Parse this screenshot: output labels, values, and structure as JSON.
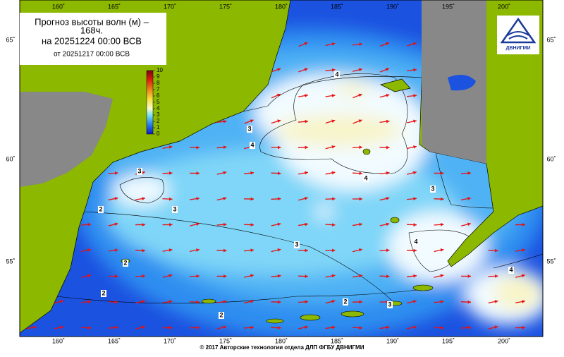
{
  "header": {
    "title": "Прогноз высоты волн (м) –",
    "title_hours": "168ч.",
    "valid": "на 20251224 00:00 ВСВ",
    "issued": "от 20251217 00:00 ВСВ"
  },
  "legend": {
    "ticks": [
      0,
      1,
      2,
      3,
      4,
      5,
      6,
      7,
      8,
      9,
      10
    ]
  },
  "longitudes": [
    "160˚",
    "165˚",
    "170˚",
    "175˚",
    "180˚",
    "185˚",
    "190˚",
    "195˚",
    "200˚"
  ],
  "latitudes": [
    "65˚",
    "60˚",
    "55˚"
  ],
  "contour_labels": [
    "4",
    "3",
    "4",
    "3",
    "3",
    "2",
    "3",
    "3",
    "4",
    "2",
    "2",
    "2",
    "2",
    "3",
    "4",
    "4"
  ],
  "logo": "ДВНИГМИ",
  "footer": "© 2017 Авторские технологии отдела ДЛП ФГБУ ДВНИГМИ"
}
